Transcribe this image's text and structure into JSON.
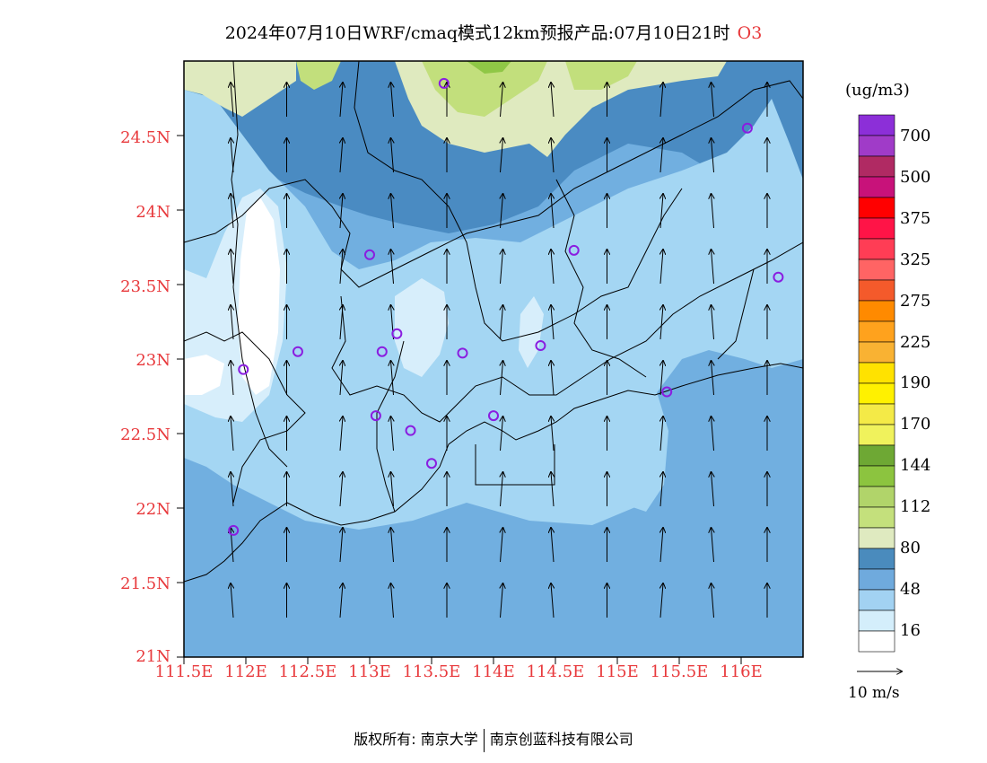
{
  "title": {
    "text": "2024年07月10日WRF/cmaq模式12km预报产品:07月10日21时",
    "pollutant": "O3"
  },
  "axes": {
    "lat_labels": [
      "24.5N",
      "24N",
      "23.5N",
      "23N",
      "22.5N",
      "22N",
      "21.5N",
      "21N"
    ],
    "lon_labels": [
      "111.5E",
      "112E",
      "112.5E",
      "113E",
      "113.5E",
      "114E",
      "114.5E",
      "115E",
      "115.5E",
      "116E"
    ],
    "lon_range": [
      111.5,
      116.5
    ],
    "lat_range": [
      21.0,
      25.0
    ]
  },
  "colorbar": {
    "unit": "(ug/m3)",
    "labels": [
      "700",
      "500",
      "375",
      "325",
      "275",
      "225",
      "190",
      "170",
      "144",
      "112",
      "80",
      "48",
      "16"
    ],
    "colors": [
      "#8c2fd8",
      "#a03bc8",
      "#b02a63",
      "#c8127a",
      "#ff0000",
      "#ff1447",
      "#ff3d55",
      "#ff6464",
      "#f45a2b",
      "#ff8a00",
      "#ffa21d",
      "#f9b233",
      "#ffe200",
      "#fff100",
      "#f4ea47",
      "#f0f25c",
      "#6ea834",
      "#8cc43f",
      "#b1d46a",
      "#c4e07c",
      "#dfeac0",
      "#4a8bbd",
      "#6faadd",
      "#a2d2f2",
      "#d4eefb",
      "#ffffff"
    ]
  },
  "field_colors": {
    "c16": "#ffffff",
    "c32": "#d7eefb",
    "c48": "#a4d6f3",
    "c64": "#71afe0",
    "c80": "#4a8bc2",
    "c96": "#dfeabf",
    "c112": "#c2df7c",
    "c128": "#8fc746"
  },
  "wind_scale": {
    "label": "10 m/s"
  },
  "stations": [
    {
      "lon": 113.6,
      "lat": 24.85
    },
    {
      "lon": 116.05,
      "lat": 24.55
    },
    {
      "lon": 113.0,
      "lat": 23.7
    },
    {
      "lon": 114.65,
      "lat": 23.73
    },
    {
      "lon": 116.3,
      "lat": 23.55
    },
    {
      "lon": 112.42,
      "lat": 23.05
    },
    {
      "lon": 113.1,
      "lat": 23.05
    },
    {
      "lon": 113.22,
      "lat": 23.17
    },
    {
      "lon": 113.75,
      "lat": 23.04
    },
    {
      "lon": 114.38,
      "lat": 23.09
    },
    {
      "lon": 111.98,
      "lat": 22.93
    },
    {
      "lon": 115.4,
      "lat": 22.78
    },
    {
      "lon": 113.05,
      "lat": 22.62
    },
    {
      "lon": 113.33,
      "lat": 22.52
    },
    {
      "lon": 114.0,
      "lat": 22.62
    },
    {
      "lon": 113.5,
      "lat": 22.3
    },
    {
      "lon": 111.9,
      "lat": 21.85
    }
  ],
  "copyright": {
    "left": "版权所有: 南京大学",
    "right": "南京创蓝科技有限公司"
  }
}
